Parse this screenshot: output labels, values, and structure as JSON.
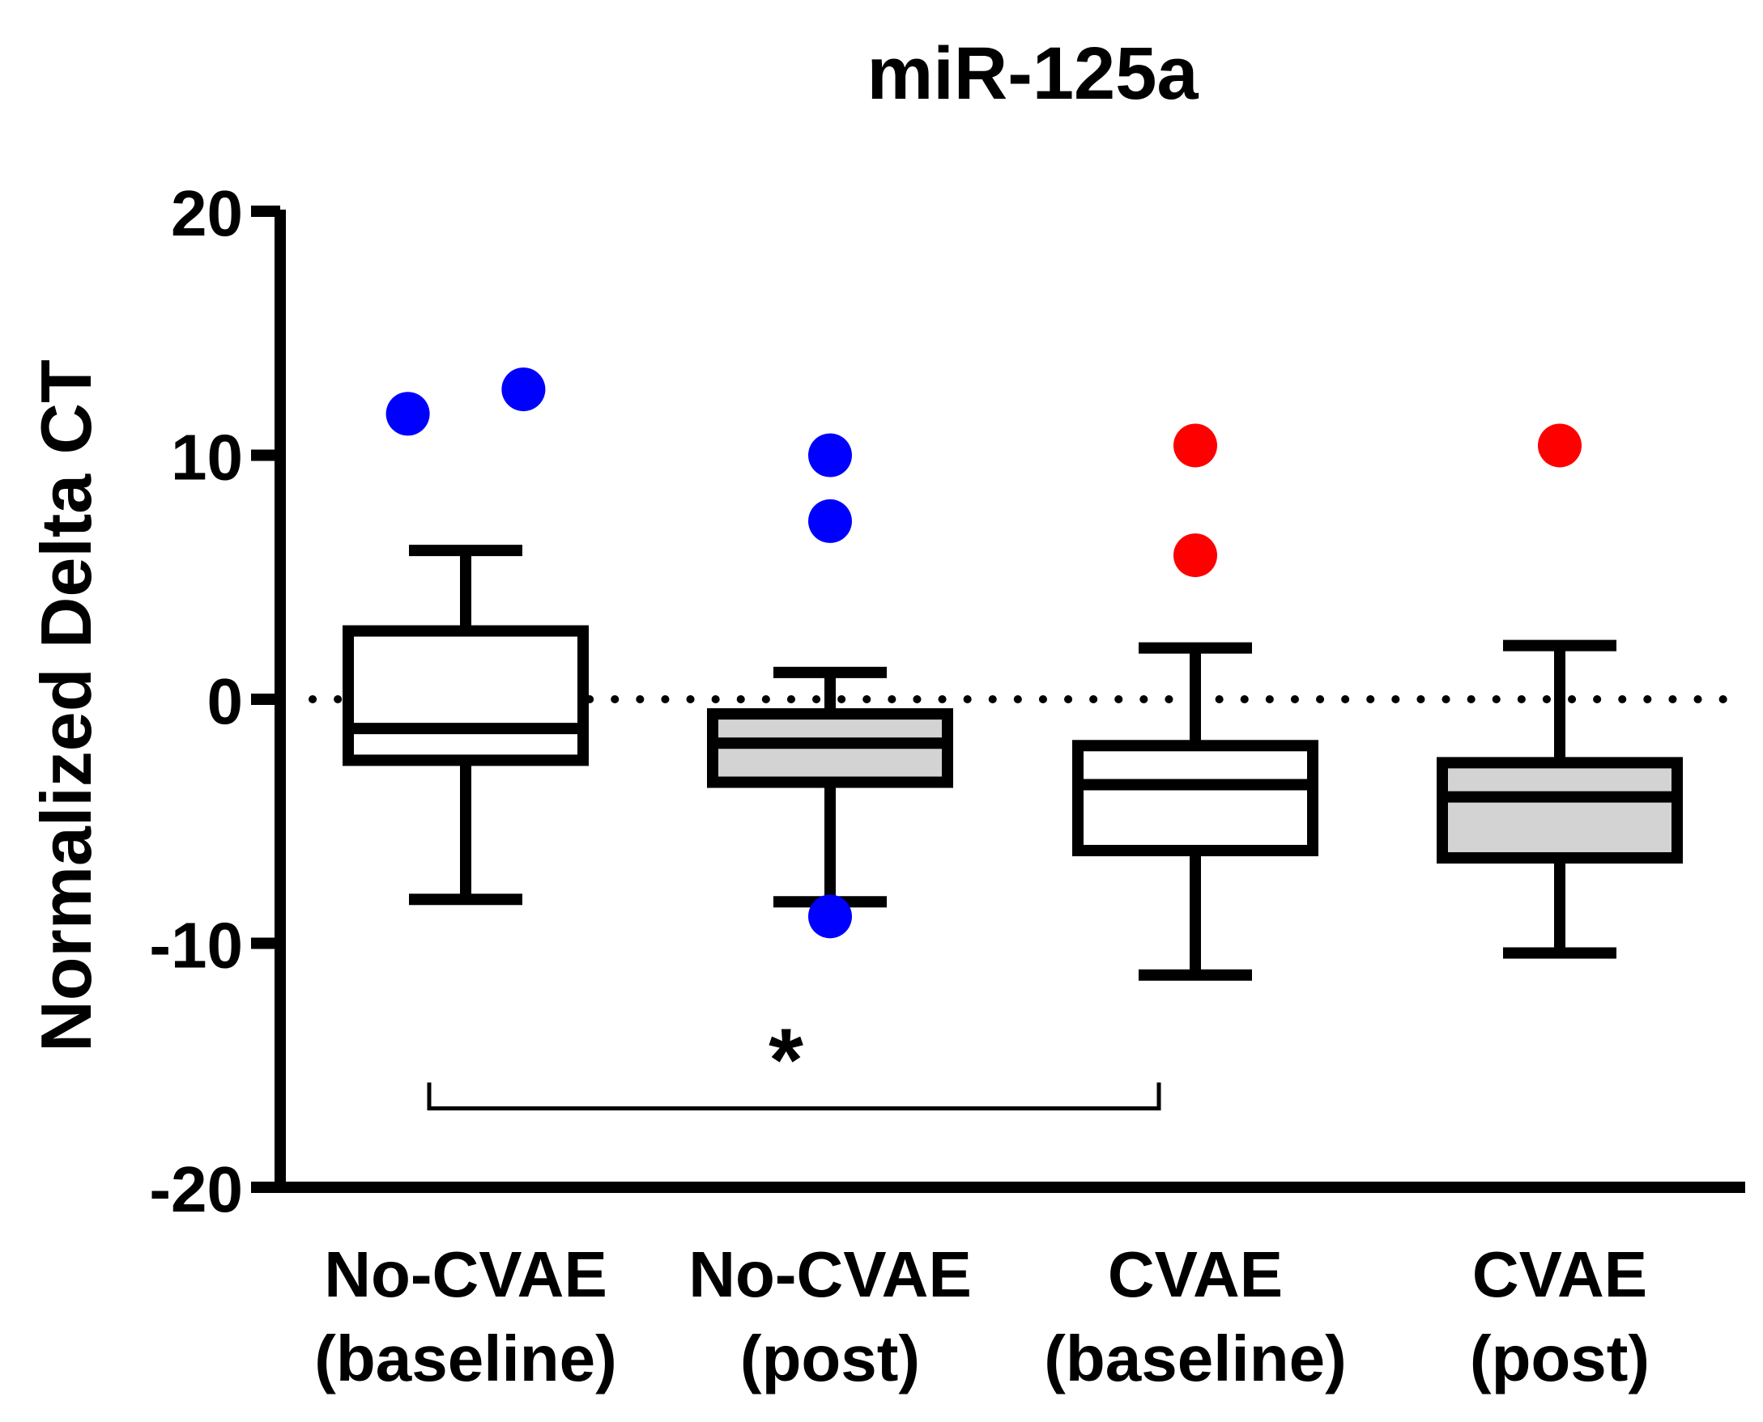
{
  "chart_data": {
    "type": "box",
    "title": "miR-125a",
    "xlabel": "",
    "ylabel": "Normalized Delta CT",
    "ylim": [
      -20,
      20
    ],
    "yticks": [
      -20,
      -10,
      0,
      10,
      20
    ],
    "ytick_labels": [
      "-20",
      "-10",
      "0",
      "10",
      "20"
    ],
    "reference_line": 0,
    "groups": [
      {
        "label_line1": "No-CVAE",
        "label_line2": "(baseline)",
        "fill": "#ffffff",
        "point_color": "#0000ff",
        "whisker_low": -8.2,
        "q1": -2.5,
        "median": -1.2,
        "q3": 2.8,
        "whisker_high": 6.1,
        "outliers": [
          {
            "x_offset": -0.17,
            "y": 11.7
          },
          {
            "x_offset": 0.17,
            "y": 12.7
          }
        ]
      },
      {
        "label_line1": "No-CVAE",
        "label_line2": "(post)",
        "fill": "#d3d3d3",
        "point_color": "#0000ff",
        "whisker_low": -8.3,
        "q1": -3.4,
        "median": -1.8,
        "q3": -0.6,
        "whisker_high": 1.1,
        "outliers": [
          {
            "x_offset": 0,
            "y": 10.0
          },
          {
            "x_offset": 0,
            "y": 7.3
          },
          {
            "x_offset": 0,
            "y": -8.9
          }
        ]
      },
      {
        "label_line1": "CVAE",
        "label_line2": "(baseline)",
        "fill": "#ffffff",
        "point_color": "#ff0000",
        "whisker_low": -11.3,
        "q1": -6.2,
        "median": -3.5,
        "q3": -1.9,
        "whisker_high": 2.1,
        "outliers": [
          {
            "x_offset": 0,
            "y": 10.4
          },
          {
            "x_offset": 0,
            "y": 5.9
          }
        ]
      },
      {
        "label_line1": "CVAE",
        "label_line2": "(post)",
        "fill": "#d3d3d3",
        "point_color": "#ff0000",
        "whisker_low": -10.4,
        "q1": -6.5,
        "median": -4.0,
        "q3": -2.6,
        "whisker_high": 2.2,
        "outliers": [
          {
            "x_offset": 0,
            "y": 10.4
          }
        ]
      }
    ],
    "significance": {
      "symbol": "*",
      "from_group": 0,
      "to_group": 2,
      "y": -17.0
    }
  }
}
